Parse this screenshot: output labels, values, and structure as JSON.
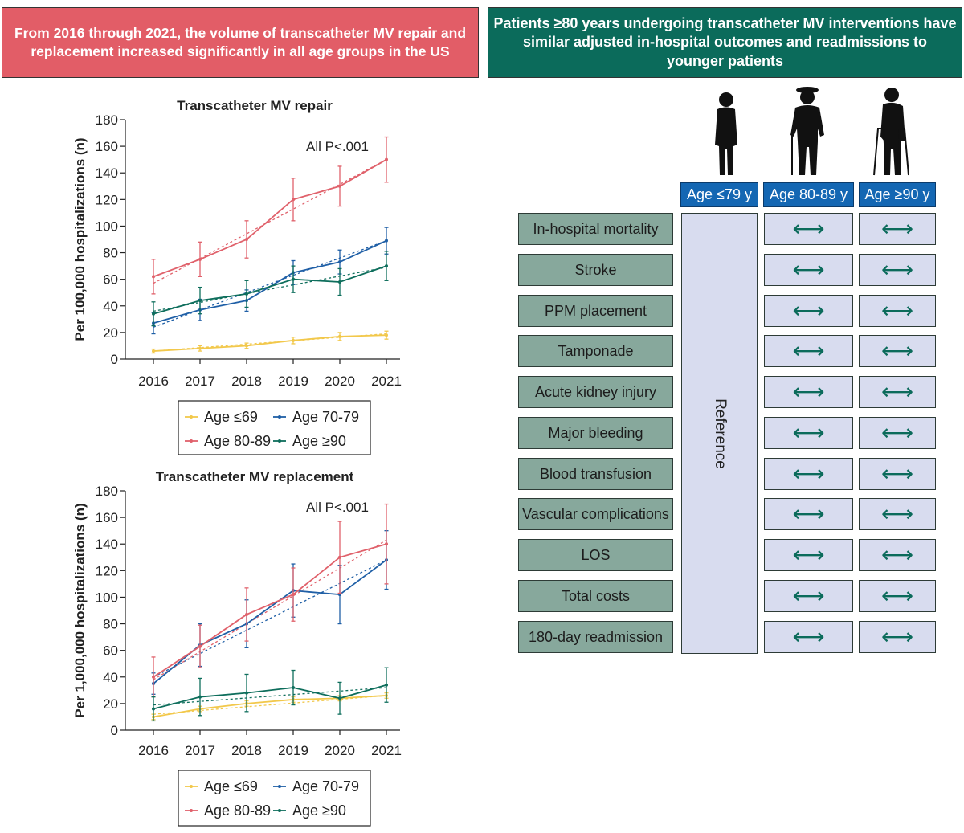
{
  "left_banner": "From 2016 through 2021, the volume of transcatheter MV repair and replacement increased significantly in all age groups in the US",
  "right_banner": "Patients ≥80 years undergoing transcatheter MV interventions have similar adjusted in-hospital outcomes and readmissions to younger patients",
  "colors": {
    "age_le69": "#f2c84b",
    "age_70_79": "#1f5fa6",
    "age_80_89": "#e0616b",
    "age_ge90": "#0e6e5c"
  },
  "chart_data": [
    {
      "type": "line",
      "title": "Transcatheter MV repair",
      "ylabel": "Per 100,000 hospitalizations (n)",
      "xlabel": "",
      "categories": [
        "2016",
        "2017",
        "2018",
        "2019",
        "2020",
        "2021"
      ],
      "ylim": [
        0,
        180
      ],
      "yticks": [
        "0",
        "20",
        "40",
        "60",
        "80",
        "100",
        "120",
        "140",
        "160",
        "180"
      ],
      "annotation": "All P<.001",
      "series": [
        {
          "name": "Age ≤69",
          "key": "age_le69",
          "values": [
            6,
            8,
            10,
            14,
            17,
            18
          ],
          "err": [
            1.5,
            2,
            2,
            2.5,
            3,
            3
          ]
        },
        {
          "name": "Age 70-79",
          "key": "age_70_79",
          "values": [
            27,
            37,
            44,
            65,
            73,
            89
          ],
          "err": [
            8,
            8,
            8,
            9,
            9,
            10
          ]
        },
        {
          "name": "Age 80-89",
          "key": "age_80_89",
          "values": [
            62,
            75,
            90,
            120,
            130,
            150
          ],
          "err": [
            13,
            13,
            14,
            16,
            15,
            17
          ]
        },
        {
          "name": "Age ≥90",
          "key": "age_ge90",
          "values": [
            34,
            44,
            49,
            60,
            58,
            70
          ],
          "err": [
            9,
            10,
            10,
            10,
            10,
            11
          ]
        }
      ],
      "trend": [
        {
          "key": "age_le69",
          "from": 6,
          "to": 19
        },
        {
          "key": "age_70_79",
          "from": 24,
          "to": 89
        },
        {
          "key": "age_80_89",
          "from": 57,
          "to": 150
        },
        {
          "key": "age_ge90",
          "from": 36,
          "to": 69
        }
      ]
    },
    {
      "type": "line",
      "title": "Transcatheter MV replacement",
      "ylabel": "Per 1,000,000 hospitalizations (n)",
      "xlabel": "",
      "categories": [
        "2016",
        "2017",
        "2018",
        "2019",
        "2020",
        "2021"
      ],
      "ylim": [
        0,
        180
      ],
      "yticks": [
        "0",
        "20",
        "40",
        "60",
        "80",
        "100",
        "120",
        "140",
        "160",
        "180"
      ],
      "annotation": "All P<.001",
      "series": [
        {
          "name": "Age ≤69",
          "key": "age_le69",
          "values": [
            10,
            16,
            20,
            23,
            24,
            26
          ],
          "err": [
            2,
            2,
            2,
            2,
            2,
            2
          ]
        },
        {
          "name": "Age 70-79",
          "key": "age_70_79",
          "values": [
            35,
            64,
            80,
            105,
            102,
            128
          ],
          "err": [
            8,
            16,
            18,
            20,
            22,
            22
          ]
        },
        {
          "name": "Age 80-89",
          "key": "age_80_89",
          "values": [
            40,
            63,
            87,
            102,
            130,
            140
          ],
          "err": [
            15,
            16,
            20,
            20,
            27,
            30
          ]
        },
        {
          "name": "Age ≥90",
          "key": "age_ge90",
          "values": [
            16,
            25,
            28,
            32,
            24,
            34
          ],
          "err": [
            9,
            14,
            14,
            13,
            12,
            13
          ]
        }
      ],
      "trend": [
        {
          "key": "age_le69",
          "from": 12,
          "to": 26
        },
        {
          "key": "age_70_79",
          "from": 40,
          "to": 128
        },
        {
          "key": "age_80_89",
          "from": 38,
          "to": 143
        },
        {
          "key": "age_ge90",
          "from": 19,
          "to": 32
        }
      ]
    }
  ],
  "table": {
    "columns": [
      "Age ≤79 y",
      "Age 80-89 y",
      "Age ≥90 y"
    ],
    "reference_label": "Reference",
    "comparison_symbol": "⟷",
    "outcomes": [
      "In-hospital mortality",
      "Stroke",
      "PPM placement",
      "Tamponade",
      "Acute kidney injury",
      "Major bleeding",
      "Blood transfusion",
      "Vascular complications",
      "LOS",
      "Total costs",
      "180-day readmission"
    ]
  },
  "figures": [
    "standing-person-icon",
    "elderly-cane-icon",
    "walker-person-icon"
  ]
}
